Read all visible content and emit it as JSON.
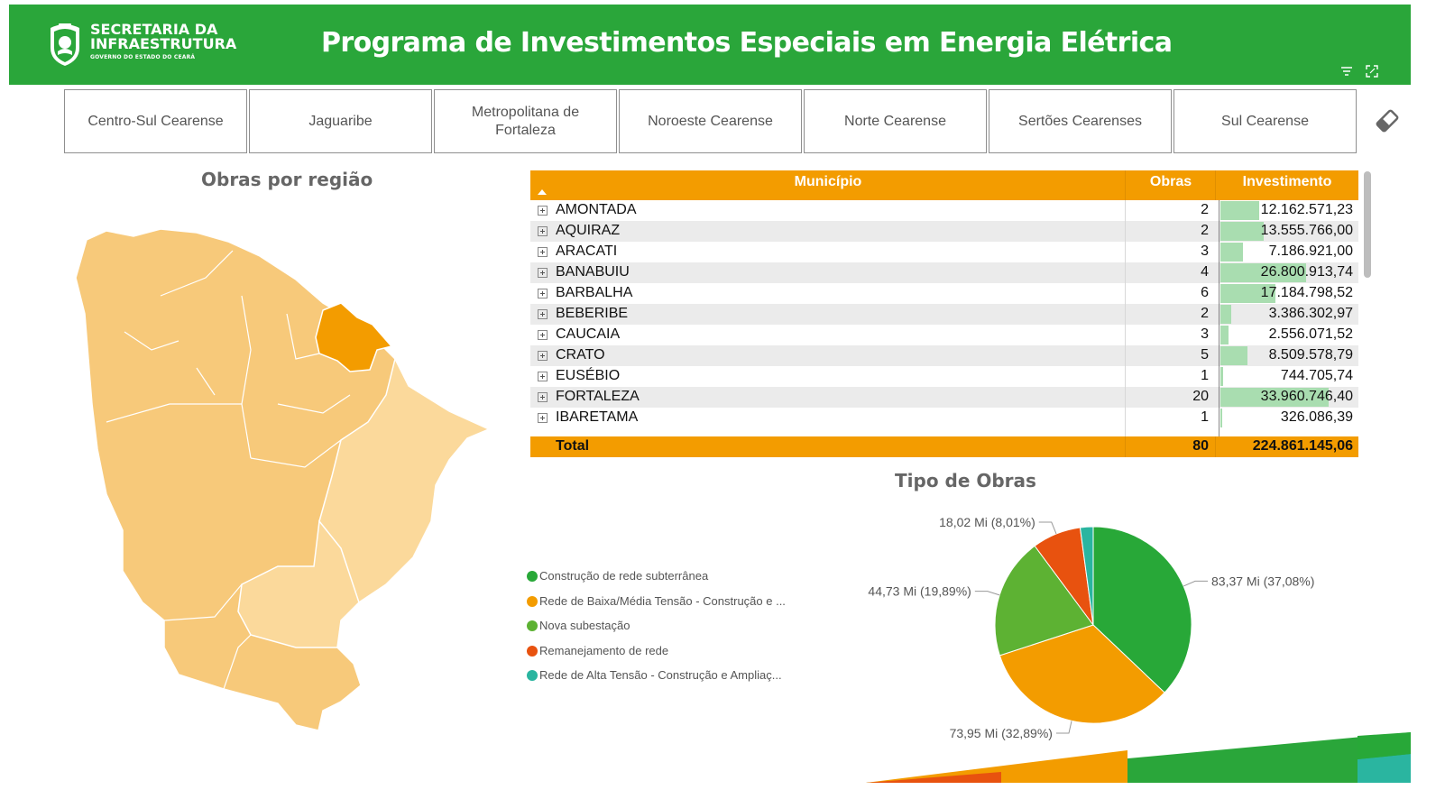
{
  "header": {
    "logo_line1": "SECRETARIA DA",
    "logo_line2": "INFRAESTRUTURA",
    "logo_line3": "GOVERNO DO ESTADO DO CEARÁ",
    "title": "Programa de Investimentos Especiais em Energia Elétrica",
    "icons": [
      "filter-icon",
      "focus-mode-icon"
    ]
  },
  "regions": [
    "Centro-Sul Cearense",
    "Jaguaribe",
    "Metropolitana de Fortaleza",
    "Noroeste Cearense",
    "Norte Cearense",
    "Sertões Cearenses",
    "Sul Cearense"
  ],
  "map": {
    "title": "Obras por região",
    "colors": {
      "base": "#f7c97a",
      "light": "#fbd99b",
      "highlight": "#f39c00"
    }
  },
  "table": {
    "headers": {
      "municipio": "Município",
      "obras": "Obras",
      "investimento": "Investimento"
    },
    "header_color": "#f39c00",
    "bar_color": "#a9ddb0",
    "rows": [
      {
        "municipio": "AMONTADA",
        "obras": "2",
        "investimento": "12.162.571,23",
        "bar_value": 12162571.23
      },
      {
        "municipio": "AQUIRAZ",
        "obras": "2",
        "investimento": "13.555.766,00",
        "bar_value": 13555766.0
      },
      {
        "municipio": "ARACATI",
        "obras": "3",
        "investimento": "7.186.921,00",
        "bar_value": 7186921.0
      },
      {
        "municipio": "BANABUIU",
        "obras": "4",
        "investimento": "26.800.913,74",
        "bar_value": 26800913.74
      },
      {
        "municipio": "BARBALHA",
        "obras": "6",
        "investimento": "17.184.798,52",
        "bar_value": 17184798.52
      },
      {
        "municipio": "BEBERIBE",
        "obras": "2",
        "investimento": "3.386.302,97",
        "bar_value": 3386302.97
      },
      {
        "municipio": "CAUCAIA",
        "obras": "3",
        "investimento": "2.556.071,52",
        "bar_value": 2556071.52
      },
      {
        "municipio": "CRATO",
        "obras": "5",
        "investimento": "8.509.578,79",
        "bar_value": 8509578.79
      },
      {
        "municipio": "EUSÉBIO",
        "obras": "1",
        "investimento": "744.705,74",
        "bar_value": 744705.74
      },
      {
        "municipio": "FORTALEZA",
        "obras": "20",
        "investimento": "33.960.746,40",
        "bar_value": 33960746.4
      },
      {
        "municipio": "IBARETAMA",
        "obras": "1",
        "investimento": "326.086,39",
        "bar_value": 326086.39
      }
    ],
    "bar_max": 33960746.4,
    "total": {
      "label": "Total",
      "obras": "80",
      "investimento": "224.861.145,06"
    }
  },
  "pie": {
    "title": "Tipo de Obras",
    "legend": [
      {
        "label": "Construção de rede subterrânea",
        "color": "#28a838"
      },
      {
        "label": "Rede de Baixa/Média Tensão - Construção e ...",
        "color": "#f39c00"
      },
      {
        "label": "Nova subestação",
        "color": "#5db233"
      },
      {
        "label": "Remanejamento de rede",
        "color": "#e8520f"
      },
      {
        "label": "Rede de Alta Tensão - Construção e Ampliaç...",
        "color": "#2ab5a0"
      }
    ],
    "chart_data": {
      "type": "pie",
      "categories": [
        "Construção de rede subterrânea",
        "Rede de Baixa/Média Tensão - Construção e ...",
        "Nova subestação",
        "Remanejamento de rede",
        "Rede de Alta Tensão - Construção e Ampliaç..."
      ],
      "values": [
        37.08,
        32.89,
        19.89,
        8.01,
        2.13
      ],
      "data_labels": [
        "83,37 Mi (37,08%)",
        "73,95 Mi (32,89%)",
        "44,73 Mi (19,89%)",
        "18,02 Mi (8,01%)",
        ""
      ]
    }
  }
}
